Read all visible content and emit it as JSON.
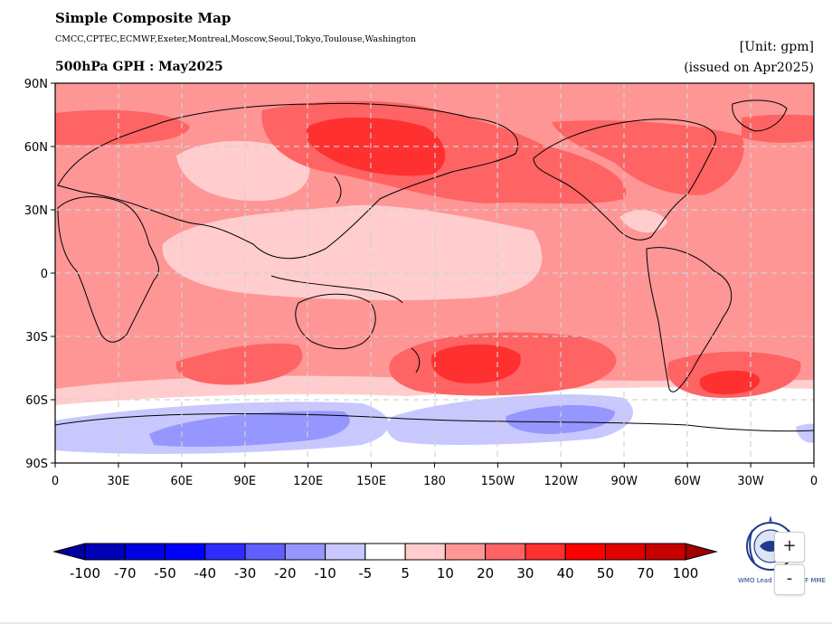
{
  "header": {
    "title": "Simple Composite Map",
    "centers": "CMCC,CPTEC,ECMWF,Exeter,Montreal,Moscow,Seoul,Tokyo,Toulouse,Washington",
    "subtitle": "500hPa GPH : May2025",
    "unit": "[Unit: gpm]",
    "issued": "(issued on Apr2025)"
  },
  "map": {
    "y_ticks": [
      "90N",
      "60N",
      "30N",
      "0",
      "30S",
      "60S",
      "90S"
    ],
    "x_ticks": [
      "0",
      "30E",
      "60E",
      "90E",
      "120E",
      "150E",
      "180",
      "150W",
      "120W",
      "90W",
      "60W",
      "30W",
      "0"
    ],
    "background_color": "#fe9696"
  },
  "colorbar": {
    "labels": [
      "-100",
      "-70",
      "-50",
      "-40",
      "-30",
      "-20",
      "-10",
      "-5",
      "5",
      "10",
      "20",
      "30",
      "40",
      "50",
      "70",
      "100"
    ],
    "colors": [
      "#0000b4",
      "#0000e0",
      "#0000ff",
      "#2d2dff",
      "#6060ff",
      "#9696ff",
      "#c8c8ff",
      "#ffffff",
      "#ffcdcd",
      "#fe9696",
      "#fe6464",
      "#ff3030",
      "#ff0000",
      "#e00000",
      "#c80000"
    ],
    "under_color": "#00009e",
    "over_color": "#a00000"
  },
  "logo": {
    "text": "WMO Lead Centre LRF MME"
  },
  "controls": {
    "zoom_in": "+",
    "zoom_out": "-"
  }
}
